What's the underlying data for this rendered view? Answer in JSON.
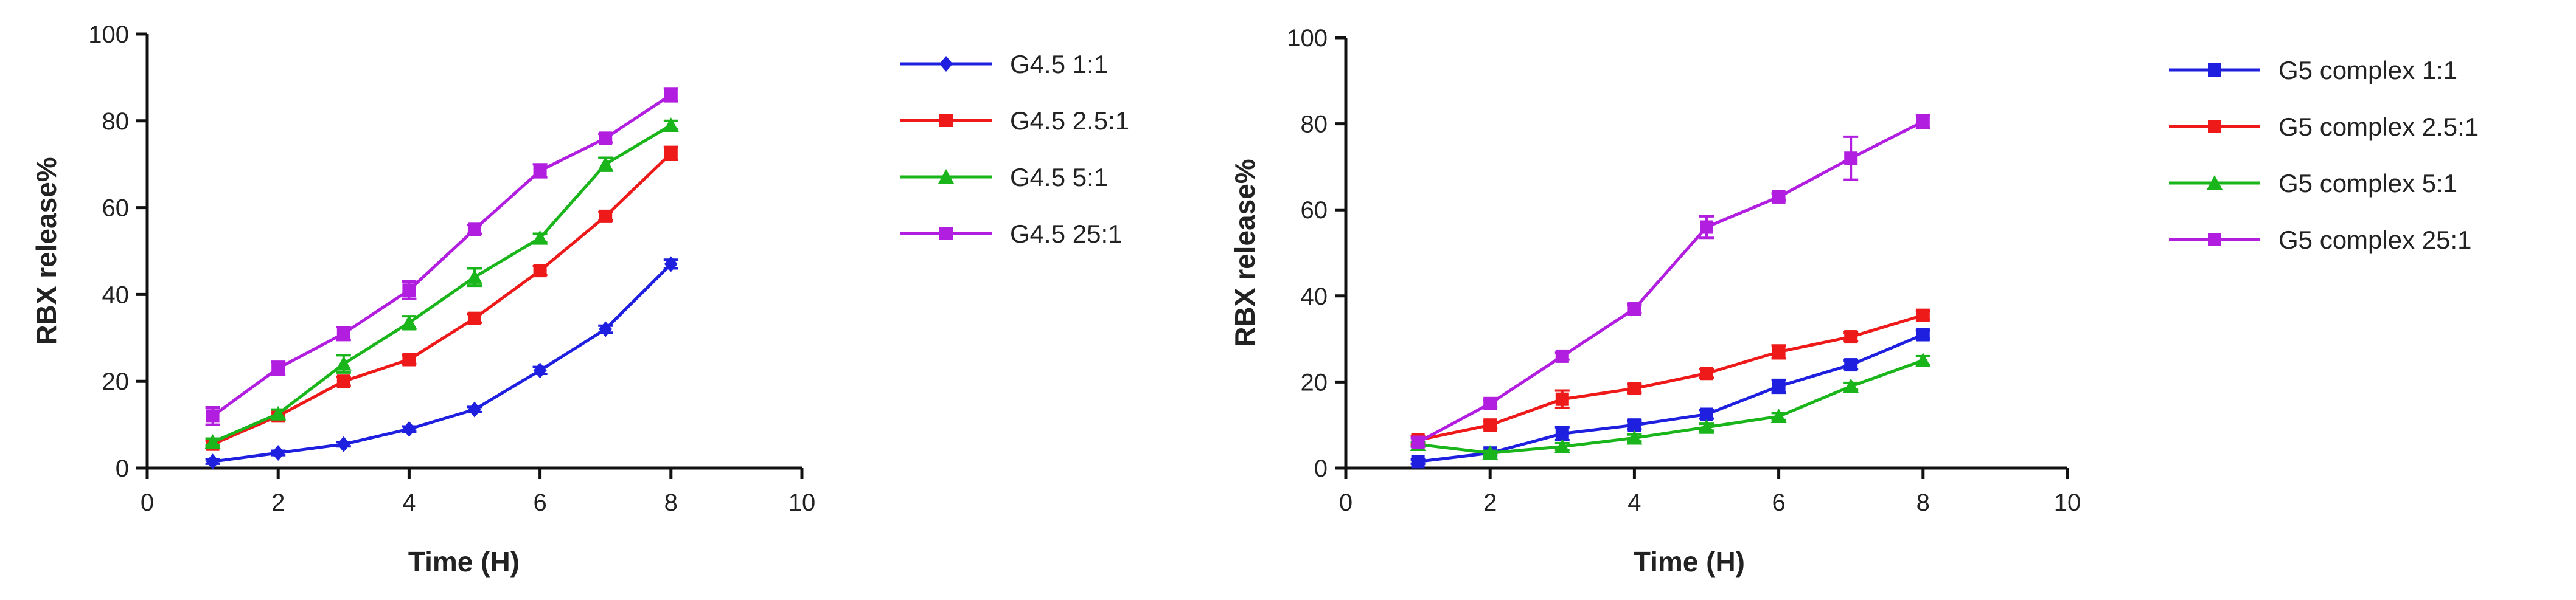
{
  "chart_data": [
    {
      "type": "line",
      "title": "",
      "xlabel": "Time (H)",
      "ylabel": "RBX release%",
      "xlim": [
        0,
        10
      ],
      "ylim": [
        0,
        100
      ],
      "xticks": [
        "0",
        "2",
        "4",
        "6",
        "8",
        "10"
      ],
      "yticks": [
        "0",
        "20",
        "40",
        "60",
        "80",
        "100"
      ],
      "legend_position": "right",
      "x": [
        1,
        2,
        3,
        4,
        5,
        6,
        7,
        8
      ],
      "series": [
        {
          "name": "G4.5 1:1",
          "color": "#1f1fe0",
          "marker": "diamond",
          "values": [
            1.5,
            3.5,
            5.5,
            9,
            13.5,
            22.5,
            32,
            47
          ],
          "errors": [
            0.5,
            0.5,
            0.5,
            0.6,
            0.6,
            0.8,
            0.8,
            1
          ]
        },
        {
          "name": "G4.5 2.5:1",
          "color": "#ee1a1a",
          "marker": "square",
          "values": [
            5.5,
            12,
            20,
            25,
            34.5,
            45.5,
            58,
            72.5
          ],
          "errors": [
            0.8,
            0.8,
            1,
            1,
            1,
            1,
            1,
            1.5
          ]
        },
        {
          "name": "G4.5 5:1",
          "color": "#1ab51a",
          "marker": "triangle",
          "values": [
            6,
            12.5,
            24,
            33.5,
            44,
            53,
            70,
            79
          ],
          "errors": [
            0.8,
            1,
            2,
            1.5,
            2,
            1,
            1.5,
            1
          ]
        },
        {
          "name": "G4.5 25:1",
          "color": "#b21ee0",
          "marker": "square",
          "values": [
            12,
            23,
            31,
            41,
            55,
            68.5,
            76,
            86
          ],
          "errors": [
            2,
            1.5,
            1.5,
            2,
            1,
            1.5,
            1,
            1.5
          ]
        }
      ]
    },
    {
      "type": "line",
      "title": "",
      "xlabel": "Time (H)",
      "ylabel": "RBX release%",
      "xlim": [
        0,
        10
      ],
      "ylim": [
        0,
        100
      ],
      "xticks": [
        "0",
        "2",
        "4",
        "6",
        "8",
        "10"
      ],
      "yticks": [
        "0",
        "20",
        "40",
        "60",
        "80",
        "100"
      ],
      "legend_position": "right",
      "x": [
        1,
        2,
        3,
        4,
        5,
        6,
        7,
        8
      ],
      "series": [
        {
          "name": "G5 complex 1:1",
          "color": "#1f1fe0",
          "marker": "square",
          "values": [
            1.5,
            3.5,
            8,
            10,
            12.5,
            19,
            24,
            31
          ],
          "errors": [
            0.5,
            0.5,
            1.5,
            1,
            1,
            1.5,
            1,
            1
          ]
        },
        {
          "name": "G5 complex 2.5:1",
          "color": "#ee1a1a",
          "marker": "square",
          "values": [
            6.5,
            10,
            16,
            18.5,
            22,
            27,
            30.5,
            35.5
          ],
          "errors": [
            1,
            0.8,
            2,
            1,
            1,
            1.5,
            1,
            1
          ]
        },
        {
          "name": "G5 complex 5:1",
          "color": "#1ab51a",
          "marker": "triangle",
          "values": [
            5.5,
            3.5,
            5,
            7,
            9.5,
            12,
            19,
            25
          ],
          "errors": [
            0.5,
            0.5,
            0.8,
            0.8,
            0.8,
            0.8,
            0.8,
            1
          ]
        },
        {
          "name": "G5 complex 25:1",
          "color": "#b21ee0",
          "marker": "square",
          "values": [
            6,
            15,
            26,
            37,
            56,
            63,
            72,
            80.5
          ],
          "errors": [
            1,
            0.8,
            0.8,
            1,
            2.5,
            0.8,
            5,
            1.5
          ]
        }
      ]
    }
  ]
}
